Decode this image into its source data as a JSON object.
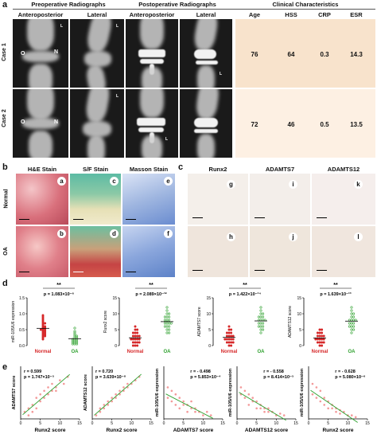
{
  "panel_a": {
    "label": "a",
    "headers": {
      "preop": "Preoperative Radiographs",
      "postop": "Postoperative Radiographs",
      "clinical": "Clinical Characteristics"
    },
    "subheaders": [
      "Anteroposterior",
      "Lateral",
      "Anteroposterior",
      "Lateral"
    ],
    "clinical_columns": [
      "Age",
      "HSS",
      "CRP",
      "ESR"
    ],
    "cases": [
      {
        "label": "Case 1",
        "age": "76",
        "hss": "64",
        "crp": "0.3",
        "esr": "14.3"
      },
      {
        "label": "Case 2",
        "age": "72",
        "hss": "46",
        "crp": "0.5",
        "esr": "13.5"
      }
    ],
    "xray_marks": {
      "o": "O",
      "n": "N",
      "l": "L"
    }
  },
  "panel_b": {
    "label": "b",
    "columns": [
      "H&E Stain",
      "S/F Stain",
      "Masson Stain"
    ],
    "rows": [
      "Normal",
      "OA"
    ],
    "tags": [
      "a",
      "c",
      "e",
      "b",
      "d",
      "f"
    ]
  },
  "panel_c": {
    "label": "c",
    "columns": [
      "Runx2",
      "ADAMTS7",
      "ADAMTS12"
    ],
    "tags": [
      "g",
      "i",
      "k",
      "h",
      "j",
      "l"
    ]
  },
  "panel_d": {
    "label": "d",
    "plots": [
      {
        "ylabel": "miR-105/U6 expression",
        "sig": "**",
        "p": "p = 1.083×10⁻⁶",
        "groups": [
          "Normal",
          "OA"
        ],
        "ticks": [
          "0.0",
          "0.5",
          "1.0",
          "1.5"
        ]
      },
      {
        "ylabel": "Runx2 score",
        "sig": "**",
        "p": "p = 2.089×10⁻¹²",
        "groups": [
          "Normal",
          "OA"
        ],
        "ticks": [
          "0",
          "5",
          "10",
          "15"
        ]
      },
      {
        "ylabel": "ADAMTS7 score",
        "sig": "**",
        "p": "p = 1.422×10⁻¹⁴",
        "groups": [
          "Normal",
          "OA"
        ],
        "ticks": [
          "0",
          "5",
          "10",
          "15"
        ]
      },
      {
        "ylabel": "ADAMTS12 score",
        "sig": "**",
        "p": "p = 1.639×10⁻¹³",
        "groups": [
          "Normal",
          "OA"
        ],
        "ticks": [
          "0",
          "5",
          "10",
          "15"
        ]
      }
    ]
  },
  "panel_e": {
    "label": "e",
    "plots": [
      {
        "ylabel": "ADAMTS7 score",
        "xlabel": "Runx2 score",
        "r": "r = 0.599",
        "p": "p = 1.747×10⁻⁵",
        "xticks": [
          "0",
          "5",
          "10",
          "15"
        ]
      },
      {
        "ylabel": "ADAMTS12 score",
        "xlabel": "Runx2 score",
        "r": "r = 0.720",
        "p": "p = 3.639×10⁻⁸",
        "xticks": [
          "0",
          "5",
          "10",
          "15"
        ]
      },
      {
        "ylabel": "miR-105/U6 expression",
        "xlabel": "ADAMTS7 score",
        "r": "r = - 0.498",
        "p": "p = 5.853×10⁻⁴",
        "xticks": [
          "0",
          "5",
          "10",
          "15"
        ]
      },
      {
        "ylabel": "miR-105/U6 expression",
        "xlabel": "ADAMTS12 score",
        "r": "r = - 0.558",
        "p": "p = 8.414×10⁻⁵",
        "xticks": [
          "0",
          "5",
          "10",
          "15"
        ]
      },
      {
        "ylabel": "miR-105/U6 expression",
        "xlabel": "Runx2 score",
        "r": "r = - 0.628",
        "p": "p = 5.080×10⁻⁶",
        "xticks": [
          "0",
          "5",
          "10",
          "15"
        ]
      }
    ]
  },
  "colors": {
    "normal": "#d62728",
    "oa": "#2ca02c",
    "scatter": "#f08080",
    "fit": "#2ca02c",
    "clinical_bg": "#f8e3cc"
  },
  "chart_data": [
    {
      "type": "scatter",
      "ylabel": "miR-105/U6 expression",
      "categories": [
        "Normal",
        "OA"
      ],
      "ylim": [
        0,
        1.5
      ],
      "series": [
        {
          "name": "Normal",
          "values": [
            0.95,
            0.9,
            0.85,
            0.8,
            0.75,
            0.7,
            0.7,
            0.65,
            0.6,
            0.6,
            0.55,
            0.55,
            0.5,
            0.5,
            0.5,
            0.45,
            0.45,
            0.4,
            0.4,
            0.35,
            0.35,
            0.3,
            0.3,
            0.25,
            0.2
          ]
        },
        {
          "name": "OA",
          "values": [
            0.55,
            0.45,
            0.4,
            0.35,
            0.3,
            0.3,
            0.25,
            0.25,
            0.2,
            0.2,
            0.2,
            0.15,
            0.15,
            0.15,
            0.1,
            0.1,
            0.1,
            0.05,
            0.05,
            0.05
          ]
        }
      ]
    },
    {
      "type": "scatter",
      "ylabel": "Runx2 score",
      "categories": [
        "Normal",
        "OA"
      ],
      "ylim": [
        0,
        15
      ],
      "series": [
        {
          "name": "Normal",
          "values": [
            6,
            5,
            5,
            4,
            4,
            4,
            3,
            3,
            3,
            3,
            2,
            2,
            2,
            2,
            2,
            1,
            1,
            1,
            1,
            0,
            0,
            0
          ]
        },
        {
          "name": "OA",
          "values": [
            12,
            11,
            10,
            10,
            9,
            9,
            9,
            8,
            8,
            8,
            7,
            7,
            7,
            7,
            6,
            6,
            6,
            5,
            5,
            4,
            4
          ]
        }
      ]
    },
    {
      "type": "scatter",
      "ylabel": "ADAMTS7 score",
      "categories": [
        "Normal",
        "OA"
      ],
      "ylim": [
        0,
        15
      ],
      "series": [
        {
          "name": "Normal",
          "values": [
            6,
            5,
            5,
            4,
            4,
            4,
            3,
            3,
            3,
            3,
            2,
            2,
            2,
            2,
            2,
            1,
            1,
            1,
            1,
            0,
            0
          ]
        },
        {
          "name": "OA",
          "values": [
            12,
            11,
            10,
            10,
            9,
            9,
            9,
            8,
            8,
            8,
            8,
            7,
            7,
            7,
            6,
            6,
            6,
            5,
            5,
            4
          ]
        }
      ]
    },
    {
      "type": "scatter",
      "ylabel": "ADAMTS12 score",
      "categories": [
        "Normal",
        "OA"
      ],
      "ylim": [
        0,
        15
      ],
      "series": [
        {
          "name": "Normal",
          "values": [
            5,
            5,
            4,
            4,
            4,
            3,
            3,
            3,
            3,
            2,
            2,
            2,
            2,
            2,
            1,
            1,
            1,
            1,
            0,
            0
          ]
        },
        {
          "name": "OA",
          "values": [
            12,
            11,
            10,
            10,
            9,
            9,
            8,
            8,
            8,
            8,
            7,
            7,
            7,
            6,
            6,
            6,
            5,
            5,
            4
          ]
        }
      ]
    },
    {
      "type": "scatter",
      "xlabel": "Runx2 score",
      "ylabel": "ADAMTS7 score",
      "xlim": [
        0,
        15
      ],
      "ylim": [
        0,
        15
      ],
      "x": [
        1,
        2,
        2,
        3,
        3,
        4,
        4,
        5,
        5,
        6,
        6,
        7,
        7,
        8,
        8,
        9,
        9,
        10,
        11,
        12
      ],
      "y": [
        2,
        3,
        1,
        4,
        2,
        3,
        6,
        5,
        7,
        6,
        8,
        7,
        9,
        8,
        10,
        9,
        8,
        11,
        10,
        12
      ]
    },
    {
      "type": "scatter",
      "xlabel": "Runx2 score",
      "ylabel": "ADAMTS12 score",
      "xlim": [
        0,
        15
      ],
      "ylim": [
        0,
        15
      ],
      "x": [
        1,
        2,
        2,
        3,
        3,
        4,
        4,
        5,
        5,
        6,
        6,
        7,
        7,
        8,
        8,
        9,
        9,
        10,
        11,
        12
      ],
      "y": [
        1,
        2,
        3,
        3,
        4,
        4,
        5,
        6,
        5,
        7,
        6,
        8,
        7,
        9,
        8,
        10,
        9,
        10,
        11,
        12
      ]
    },
    {
      "type": "scatter",
      "xlabel": "ADAMTS7 score",
      "ylabel": "miR-105/U6 expression",
      "xlim": [
        0,
        15
      ],
      "ylim": [
        0,
        1.5
      ],
      "x": [
        1,
        1,
        2,
        2,
        3,
        3,
        4,
        4,
        5,
        5,
        6,
        6,
        7,
        7,
        8,
        8,
        9,
        10,
        11,
        12
      ],
      "y": [
        0.9,
        0.6,
        0.8,
        0.5,
        0.7,
        0.4,
        0.6,
        0.3,
        0.5,
        0.4,
        0.4,
        0.2,
        0.3,
        0.5,
        0.2,
        0.3,
        0.2,
        0.1,
        0.2,
        0.1
      ]
    },
    {
      "type": "scatter",
      "xlabel": "ADAMTS12 score",
      "ylabel": "miR-105/U6 expression",
      "xlim": [
        0,
        15
      ],
      "ylim": [
        0,
        1.5
      ],
      "x": [
        1,
        1,
        2,
        2,
        3,
        3,
        4,
        4,
        5,
        5,
        6,
        6,
        7,
        7,
        8,
        8,
        9,
        10,
        11,
        12
      ],
      "y": [
        0.9,
        0.7,
        0.8,
        0.6,
        0.7,
        0.4,
        0.6,
        0.5,
        0.5,
        0.3,
        0.4,
        0.3,
        0.3,
        0.2,
        0.3,
        0.2,
        0.2,
        0.1,
        0.15,
        0.1
      ]
    },
    {
      "type": "scatter",
      "xlabel": "Runx2 score",
      "ylabel": "miR-105/U6 expression",
      "xlim": [
        0,
        15
      ],
      "ylim": [
        0,
        1.5
      ],
      "x": [
        1,
        1,
        2,
        2,
        3,
        3,
        4,
        4,
        5,
        5,
        6,
        6,
        7,
        7,
        8,
        8,
        9,
        10,
        11,
        12
      ],
      "y": [
        1.0,
        0.7,
        0.9,
        0.6,
        0.8,
        0.5,
        0.6,
        0.4,
        0.5,
        0.3,
        0.4,
        0.3,
        0.3,
        0.2,
        0.25,
        0.15,
        0.2,
        0.1,
        0.1,
        0.05
      ]
    }
  ]
}
